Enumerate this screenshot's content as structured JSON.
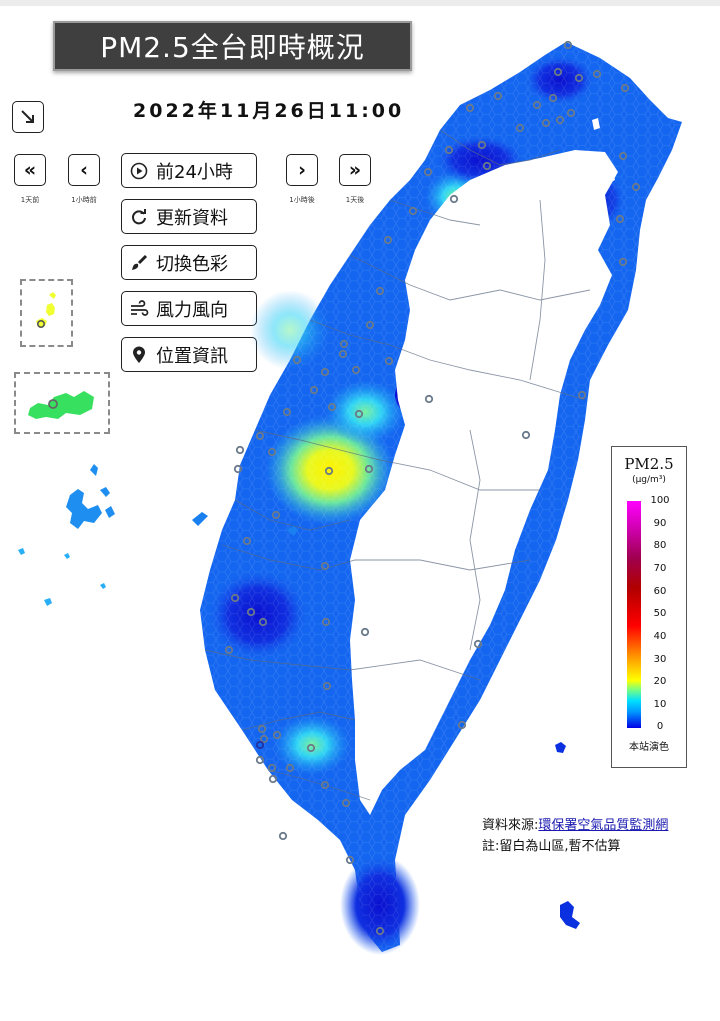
{
  "title": "PM2.5全台即時概況",
  "datetime": "2022年11月26日11:00",
  "nav": {
    "back_day": {
      "symbol": "«",
      "caption": "1天前"
    },
    "back_hour": {
      "symbol": "‹",
      "caption": "1小時前"
    },
    "fwd_hour": {
      "symbol": "›",
      "caption": "1小時後"
    },
    "fwd_day": {
      "symbol": "»",
      "caption": "1天後"
    }
  },
  "actions": {
    "past24": "前24小時",
    "refresh": "更新資料",
    "color": "切換色彩",
    "wind": "風力風向",
    "location": "位置資訊"
  },
  "legend": {
    "title": "PM2.5",
    "unit": "(μg/m³)",
    "ticks": [
      "100",
      "90",
      "80",
      "70",
      "60",
      "50",
      "40",
      "30",
      "20",
      "10",
      "0"
    ],
    "footer": "本站演色"
  },
  "source": {
    "label": "資料來源:",
    "link": "環保署空氣品質監測網",
    "note": "註:留白為山區,暫不估算"
  },
  "colors": {
    "deep_blue": "#0a1edc",
    "blue": "#1560f0",
    "light_blue": "#1e9cf5",
    "cyan": "#28d2f5",
    "yellow": "#fff200",
    "green_yellow": "#c8f03c"
  }
}
